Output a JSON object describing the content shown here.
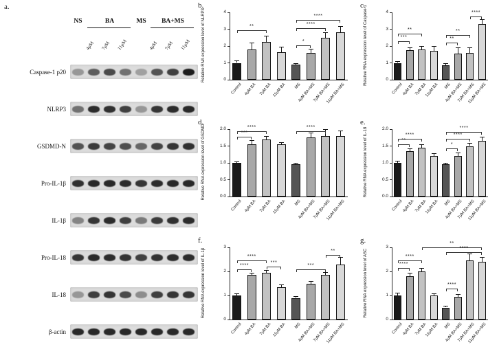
{
  "categories": [
    "Control",
    "4μM BA",
    "7μM BA",
    "11μM BA",
    "MS",
    "4μM BA+MS",
    "7μM BA+MS",
    "11μM BA+MS"
  ],
  "bar_colors": [
    "#1a1a1a",
    "#a8a8a8",
    "#c2c2c2",
    "#d8d8d8",
    "#555555",
    "#a8a8a8",
    "#c2c2c2",
    "#d8d8d8"
  ],
  "panel_a": {
    "label": "a.",
    "groups": [
      {
        "label": "NS",
        "lanes": 1
      },
      {
        "label": "BA",
        "lanes": 3
      },
      {
        "label": "MS",
        "lanes": 1
      },
      {
        "label": "BA+MS",
        "lanes": 3
      }
    ],
    "dose_labels": [
      "4μM",
      "7μM",
      "11μM"
    ],
    "rows": [
      {
        "name": "Caspase-1 p20",
        "bands": [
          0.35,
          0.65,
          0.75,
          0.55,
          0.3,
          0.7,
          0.8,
          0.98
        ]
      },
      {
        "name": "NLRP3",
        "bands": [
          0.55,
          0.9,
          0.88,
          0.8,
          0.35,
          0.85,
          0.9,
          0.92
        ]
      },
      {
        "name": "GSDMD-N",
        "bands": [
          0.7,
          0.82,
          0.78,
          0.72,
          0.6,
          0.78,
          0.85,
          0.88
        ]
      },
      {
        "name": "Pro-IL-1β",
        "bands": [
          0.88,
          0.92,
          0.92,
          0.9,
          0.86,
          0.9,
          0.92,
          0.92
        ]
      },
      {
        "name": "IL-1β",
        "bands": [
          0.45,
          0.85,
          0.9,
          0.8,
          0.5,
          0.82,
          0.88,
          0.9
        ]
      },
      {
        "name": "Pro-IL-18",
        "bands": [
          0.85,
          0.9,
          0.9,
          0.86,
          0.8,
          0.88,
          0.9,
          0.9
        ]
      },
      {
        "name": "IL-18",
        "bands": [
          0.35,
          0.8,
          0.85,
          0.75,
          0.4,
          0.8,
          0.85,
          0.85
        ]
      },
      {
        "name": "β-actin",
        "bands": [
          0.92,
          0.92,
          0.92,
          0.92,
          0.92,
          0.92,
          0.92,
          0.92
        ]
      }
    ]
  },
  "chart_data": [
    {
      "type": "bar",
      "panel": "b.",
      "panel_id": "b",
      "ylabel": "Relative RNA expression level of NLRP3",
      "ylim": [
        0,
        4
      ],
      "ticks": {
        "values": [
          0,
          1,
          2,
          3,
          4
        ],
        "labels": [
          "0",
          "1",
          "2",
          "3",
          "4"
        ]
      },
      "values": [
        1.0,
        1.8,
        2.25,
        1.65,
        0.9,
        1.6,
        2.5,
        2.8
      ],
      "errors": [
        0.15,
        0.4,
        0.35,
        0.3,
        0.1,
        0.25,
        0.3,
        0.4
      ],
      "brackets": [
        {
          "label": "**",
          "from": 0,
          "to": 2,
          "y": 2.95
        },
        {
          "label": "*",
          "from": 4,
          "to": 5,
          "y": 2.05
        },
        {
          "label": "****",
          "from": 4,
          "to": 6,
          "y": 3.05
        },
        {
          "label": "****",
          "from": 4,
          "to": 7,
          "y": 3.55
        }
      ]
    },
    {
      "type": "bar",
      "panel": "c.",
      "panel_id": "c",
      "ylabel": "Relative RNA expression level of Caspase-1",
      "ylim": [
        0,
        4
      ],
      "ticks": {
        "values": [
          0,
          1,
          2,
          3,
          4
        ],
        "labels": [
          "0",
          "1",
          "2",
          "3",
          "4"
        ]
      },
      "values": [
        1.0,
        1.75,
        1.8,
        1.7,
        0.85,
        1.55,
        1.6,
        3.3
      ],
      "errors": [
        0.1,
        0.15,
        0.2,
        0.3,
        0.15,
        0.35,
        0.3,
        0.3
      ],
      "brackets": [
        {
          "label": "***",
          "from": 0,
          "to": 1,
          "y": 2.3
        },
        {
          "label": "**",
          "from": 0,
          "to": 2,
          "y": 2.75
        },
        {
          "label": "**",
          "from": 4,
          "to": 5,
          "y": 2.2
        },
        {
          "label": "**",
          "from": 4,
          "to": 6,
          "y": 2.65
        },
        {
          "label": "****",
          "from": 6,
          "to": 7,
          "y": 3.75
        }
      ]
    },
    {
      "type": "bar",
      "panel": "d.",
      "panel_id": "d",
      "ylabel": "Relative RNA expression level of GSDMD",
      "ylim": [
        0,
        2
      ],
      "ticks": {
        "values": [
          0,
          0.5,
          1,
          1.5,
          2
        ],
        "labels": [
          "0.0",
          "0.5",
          "1.0",
          "1.5",
          "2.0"
        ]
      },
      "values": [
        1.0,
        1.55,
        1.7,
        1.55,
        0.95,
        1.75,
        1.8,
        1.8
      ],
      "errors": [
        0.05,
        0.12,
        0.1,
        0.06,
        0.05,
        0.15,
        0.2,
        0.15
      ],
      "brackets": [
        {
          "label": "***",
          "from": 0,
          "to": 1,
          "y": 1.78
        },
        {
          "label": "****",
          "from": 0,
          "to": 2,
          "y": 1.93
        },
        {
          "label": "****",
          "from": 4,
          "to": 6,
          "y": 1.93
        }
      ]
    },
    {
      "type": "bar",
      "panel": "e.",
      "panel_id": "e",
      "ylabel": "Relative RNA expression level of IL-18",
      "ylim": [
        0,
        2
      ],
      "ticks": {
        "values": [
          0,
          0.5,
          1,
          1.5,
          2
        ],
        "labels": [
          "0.0",
          "0.5",
          "1.0",
          "1.5",
          "2.0"
        ]
      },
      "values": [
        1.0,
        1.35,
        1.45,
        1.2,
        0.95,
        1.2,
        1.5,
        1.65
      ],
      "errors": [
        0.07,
        0.08,
        0.1,
        0.08,
        0.05,
        0.1,
        0.1,
        0.12
      ],
      "brackets": [
        {
          "label": "**",
          "from": 0,
          "to": 1,
          "y": 1.55
        },
        {
          "label": "****",
          "from": 0,
          "to": 2,
          "y": 1.72
        },
        {
          "label": "*",
          "from": 4,
          "to": 5,
          "y": 1.42
        },
        {
          "label": "****",
          "from": 4,
          "to": 6,
          "y": 1.72
        },
        {
          "label": "****",
          "from": 4,
          "to": 7,
          "y": 1.92
        }
      ]
    },
    {
      "type": "bar",
      "panel": "f.",
      "panel_id": "f",
      "ylabel": "Relative RNA expression level of IL-1β",
      "ylim": [
        0,
        3
      ],
      "ticks": {
        "values": [
          0,
          1,
          2,
          3
        ],
        "labels": [
          "0",
          "1",
          "2",
          "3"
        ]
      },
      "values": [
        1.0,
        1.85,
        1.95,
        1.35,
        0.9,
        1.5,
        1.85,
        2.3
      ],
      "errors": [
        0.08,
        0.1,
        0.1,
        0.12,
        0.06,
        0.1,
        0.12,
        0.3
      ],
      "brackets": [
        {
          "label": "****",
          "from": 0,
          "to": 1,
          "y": 2.1
        },
        {
          "label": "****",
          "from": 0,
          "to": 2,
          "y": 2.45
        },
        {
          "label": "***",
          "from": 2,
          "to": 3,
          "y": 2.2
        },
        {
          "label": "***",
          "from": 4,
          "to": 6,
          "y": 2.1
        },
        {
          "label": "**",
          "from": 6,
          "to": 7,
          "y": 2.7
        }
      ]
    },
    {
      "type": "bar",
      "panel": "g.",
      "panel_id": "g",
      "ylabel": "Relative RNA expression level of ASC",
      "ylim": [
        0,
        3
      ],
      "ticks": {
        "values": [
          0,
          1,
          2,
          3
        ],
        "labels": [
          "0",
          "1",
          "2",
          "3"
        ]
      },
      "values": [
        1.0,
        1.8,
        2.0,
        1.0,
        0.5,
        0.95,
        2.45,
        2.4
      ],
      "errors": [
        0.12,
        0.15,
        0.15,
        0.1,
        0.06,
        0.1,
        0.3,
        0.2
      ],
      "brackets": [
        {
          "label": "****",
          "from": 0,
          "to": 1,
          "y": 2.15
        },
        {
          "label": "****",
          "from": 0,
          "to": 2,
          "y": 2.45
        },
        {
          "label": "****",
          "from": 4,
          "to": 5,
          "y": 1.28
        },
        {
          "label": "****",
          "from": 4,
          "to": 7,
          "y": 2.8
        },
        {
          "label": "**",
          "from": 2,
          "to": 7,
          "y": 3.0
        }
      ]
    }
  ]
}
